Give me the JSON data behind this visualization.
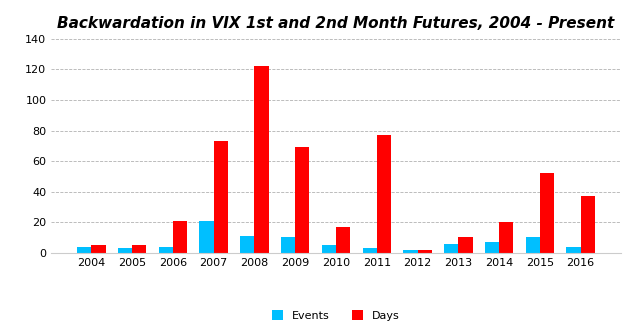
{
  "years": [
    2004,
    2005,
    2006,
    2007,
    2008,
    2009,
    2010,
    2011,
    2012,
    2013,
    2014,
    2015,
    2016
  ],
  "events": [
    4,
    3,
    4,
    21,
    11,
    10,
    5,
    3,
    2,
    6,
    7,
    10,
    4
  ],
  "days": [
    5,
    5,
    21,
    73,
    122,
    69,
    17,
    77,
    2,
    10,
    20,
    52,
    37
  ],
  "title": "Backwardation in VIX 1st and 2nd Month Futures, 2004 - Present",
  "ylim": [
    0,
    140
  ],
  "yticks": [
    0,
    20,
    40,
    60,
    80,
    100,
    120,
    140
  ],
  "bar_color_events": "#00BFFF",
  "bar_color_days": "#FF0000",
  "background_color": "#FFFFFF",
  "legend_labels": [
    "Events",
    "Days"
  ],
  "bar_width": 0.35,
  "title_fontsize": 11,
  "tick_fontsize": 8,
  "legend_fontsize": 8
}
